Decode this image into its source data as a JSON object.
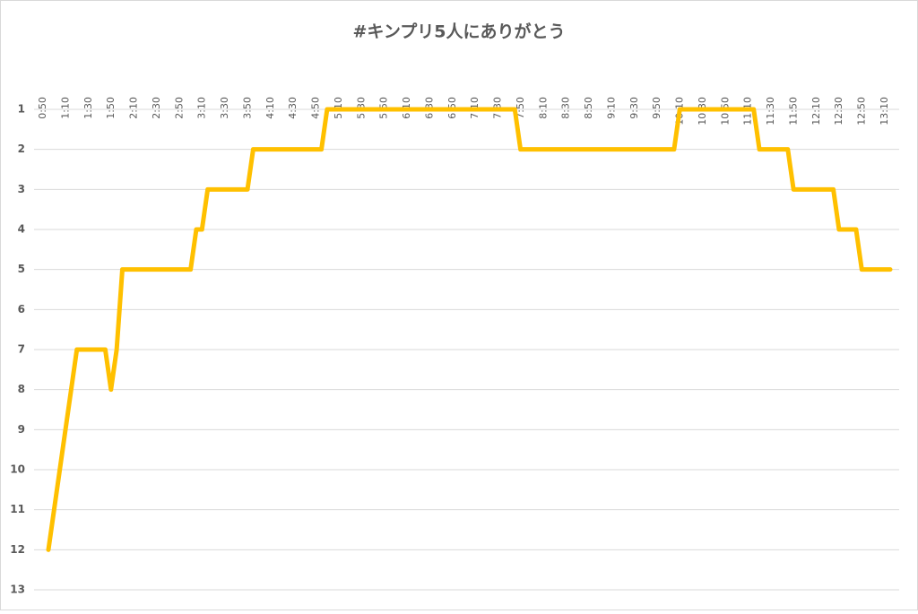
{
  "chart_data": {
    "type": "line",
    "title": "#キンプリ5人にありがとう",
    "categories": [
      "0:50",
      null,
      null,
      null,
      "1:10",
      null,
      null,
      null,
      "1:30",
      null,
      null,
      null,
      "1:50",
      null,
      null,
      null,
      "2:10",
      null,
      null,
      null,
      "2:30",
      null,
      null,
      null,
      "2:50",
      null,
      null,
      null,
      "3:10",
      null,
      null,
      null,
      "3:30",
      null,
      null,
      null,
      "3:50",
      null,
      null,
      null,
      "4:10",
      null,
      null,
      null,
      "4:30",
      null,
      null,
      null,
      "4:50",
      null,
      null,
      null,
      "5:10",
      null,
      null,
      null,
      "5:30",
      null,
      null,
      null,
      "5:50",
      null,
      null,
      null,
      "6:10",
      null,
      null,
      null,
      "6:30",
      null,
      null,
      null,
      "6:50",
      null,
      null,
      null,
      "7:10",
      null,
      null,
      null,
      "7:30",
      null,
      null,
      null,
      "7:50",
      null,
      null,
      null,
      "8:10",
      null,
      null,
      null,
      "8:30",
      null,
      null,
      null,
      "8:50",
      null,
      null,
      null,
      "9:10",
      null,
      null,
      null,
      "9:30",
      null,
      null,
      null,
      "9:50",
      null,
      null,
      null,
      "10:10",
      null,
      null,
      null,
      "10:30",
      null,
      null,
      null,
      "10:50",
      null,
      null,
      null,
      "11:10",
      null,
      null,
      null,
      "11:30",
      null,
      null,
      null,
      "11:50",
      null,
      null,
      null,
      "12:10",
      null,
      null,
      null,
      "12:30",
      null,
      null,
      null,
      "12:50",
      null,
      null,
      null,
      "13:10"
    ],
    "values": [
      12,
      11,
      10,
      9,
      8,
      7,
      7,
      7,
      7,
      7,
      7,
      8,
      7,
      5,
      5,
      5,
      5,
      5,
      5,
      5,
      5,
      5,
      5,
      5,
      5,
      5,
      4,
      4,
      3,
      3,
      3,
      3,
      3,
      3,
      3,
      3,
      2,
      2,
      2,
      2,
      2,
      2,
      2,
      2,
      2,
      2,
      2,
      2,
      2,
      1,
      1,
      1,
      1,
      1,
      1,
      1,
      1,
      1,
      1,
      1,
      1,
      1,
      1,
      1,
      1,
      1,
      1,
      1,
      1,
      1,
      1,
      1,
      1,
      1,
      1,
      1,
      1,
      1,
      1,
      1,
      1,
      1,
      1,
      2,
      2,
      2,
      2,
      2,
      2,
      2,
      2,
      2,
      2,
      2,
      2,
      2,
      2,
      2,
      2,
      2,
      2,
      2,
      2,
      2,
      2,
      2,
      2,
      2,
      2,
      2,
      2,
      1,
      1,
      1,
      1,
      1,
      1,
      1,
      1,
      1,
      1,
      1,
      1,
      1,
      1,
      2,
      2,
      2,
      2,
      2,
      2,
      3,
      3,
      3,
      3,
      3,
      3,
      3,
      3,
      4,
      4,
      4,
      4,
      5,
      5,
      5,
      5,
      5,
      5
    ],
    "color": "#FFC000",
    "ylim": [
      1,
      13
    ],
    "y_reversed": true,
    "yticks": [
      1,
      2,
      3,
      4,
      5,
      6,
      7,
      8,
      9,
      10,
      11,
      12,
      13
    ],
    "grid": true
  }
}
